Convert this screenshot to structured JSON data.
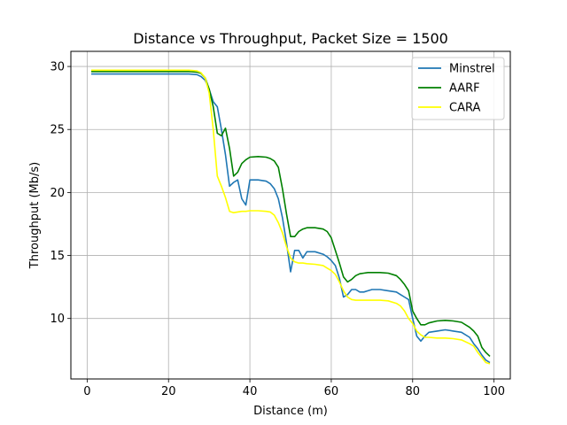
{
  "chart_data": {
    "type": "line",
    "title": "Distance vs Throughput, Packet Size = 1500",
    "xlabel": "Distance (m)",
    "ylabel": "Throughput (Mb/s)",
    "xlim": [
      -4,
      104
    ],
    "ylim": [
      5.2,
      31.2
    ],
    "xticks": [
      0,
      20,
      40,
      60,
      80,
      100
    ],
    "yticks": [
      10,
      15,
      20,
      25,
      30
    ],
    "grid": true,
    "legend_position": "top-right",
    "series": [
      {
        "name": "Minstrel",
        "color": "#1f77b4",
        "x": [
          1,
          5,
          10,
          15,
          20,
          25,
          27,
          28,
          29,
          30,
          31,
          32,
          33,
          34,
          35,
          36,
          37,
          38,
          39,
          40,
          42,
          44,
          45,
          46,
          47,
          48,
          49,
          50,
          51,
          52,
          53,
          54,
          56,
          58,
          59,
          60,
          61,
          62,
          63,
          64,
          65,
          66,
          67,
          68,
          69,
          70,
          72,
          74,
          76,
          77,
          78,
          79,
          80,
          81,
          82,
          83,
          84,
          86,
          88,
          90,
          92,
          94,
          95,
          96,
          97,
          98,
          99
        ],
        "y": [
          29.4,
          29.4,
          29.4,
          29.4,
          29.4,
          29.4,
          29.35,
          29.2,
          28.9,
          28.2,
          27.2,
          26.8,
          25.0,
          23.0,
          20.5,
          20.8,
          21.0,
          19.5,
          19.0,
          21.0,
          21.0,
          20.9,
          20.7,
          20.3,
          19.5,
          18.0,
          16.0,
          13.7,
          15.4,
          15.4,
          14.8,
          15.3,
          15.3,
          15.1,
          14.9,
          14.6,
          14.2,
          13.2,
          11.7,
          11.9,
          12.3,
          12.3,
          12.1,
          12.1,
          12.2,
          12.3,
          12.3,
          12.2,
          12.1,
          11.9,
          11.7,
          11.5,
          10.0,
          8.6,
          8.2,
          8.6,
          8.9,
          9.0,
          9.1,
          9.0,
          8.9,
          8.5,
          8.0,
          7.6,
          7.1,
          6.7,
          6.5
        ]
      },
      {
        "name": "AARF",
        "color": "#008000",
        "x": [
          1,
          5,
          10,
          15,
          20,
          25,
          27,
          28,
          29,
          30,
          31,
          32,
          33,
          34,
          35,
          36,
          37,
          38,
          39,
          40,
          42,
          44,
          45,
          46,
          47,
          48,
          49,
          50,
          51,
          52,
          53,
          54,
          56,
          58,
          59,
          60,
          61,
          62,
          63,
          64,
          65,
          66,
          67,
          68,
          69,
          70,
          72,
          74,
          76,
          77,
          78,
          79,
          80,
          81,
          82,
          83,
          84,
          86,
          88,
          90,
          92,
          94,
          95,
          96,
          97,
          98,
          99
        ],
        "y": [
          29.6,
          29.6,
          29.6,
          29.6,
          29.6,
          29.6,
          29.55,
          29.45,
          29.1,
          28.2,
          26.8,
          24.7,
          24.5,
          25.1,
          23.5,
          21.3,
          21.6,
          22.3,
          22.6,
          22.8,
          22.85,
          22.8,
          22.7,
          22.5,
          22.0,
          20.3,
          18.3,
          16.5,
          16.5,
          16.9,
          17.1,
          17.2,
          17.2,
          17.1,
          16.9,
          16.4,
          15.4,
          14.4,
          13.3,
          12.9,
          13.1,
          13.4,
          13.55,
          13.6,
          13.65,
          13.65,
          13.65,
          13.6,
          13.4,
          13.1,
          12.7,
          12.2,
          10.6,
          10.0,
          9.5,
          9.5,
          9.65,
          9.8,
          9.85,
          9.8,
          9.7,
          9.3,
          9.0,
          8.6,
          7.7,
          7.3,
          7.0
        ]
      },
      {
        "name": "CARA",
        "color": "#ffff00",
        "x": [
          1,
          5,
          10,
          15,
          20,
          25,
          27,
          28,
          29,
          30,
          31,
          32,
          33,
          34,
          35,
          36,
          37,
          38,
          39,
          40,
          42,
          44,
          45,
          46,
          47,
          48,
          49,
          50,
          51,
          52,
          53,
          54,
          56,
          58,
          59,
          60,
          61,
          62,
          63,
          64,
          65,
          66,
          67,
          68,
          69,
          70,
          72,
          74,
          76,
          77,
          78,
          79,
          80,
          81,
          82,
          83,
          84,
          86,
          88,
          90,
          92,
          94,
          95,
          96,
          97,
          98,
          99
        ],
        "y": [
          29.7,
          29.7,
          29.7,
          29.7,
          29.7,
          29.7,
          29.65,
          29.5,
          29.1,
          27.9,
          25.0,
          21.3,
          20.5,
          19.6,
          18.5,
          18.4,
          18.45,
          18.5,
          18.5,
          18.55,
          18.55,
          18.5,
          18.45,
          18.2,
          17.6,
          16.8,
          15.7,
          14.8,
          14.5,
          14.4,
          14.4,
          14.35,
          14.3,
          14.2,
          14.0,
          13.8,
          13.5,
          12.9,
          12.2,
          11.7,
          11.5,
          11.45,
          11.45,
          11.45,
          11.45,
          11.45,
          11.45,
          11.4,
          11.2,
          11.0,
          10.6,
          10.0,
          9.6,
          9.0,
          8.7,
          8.5,
          8.5,
          8.45,
          8.45,
          8.4,
          8.3,
          8.0,
          7.8,
          7.3,
          6.9,
          6.5,
          6.4
        ]
      }
    ]
  }
}
